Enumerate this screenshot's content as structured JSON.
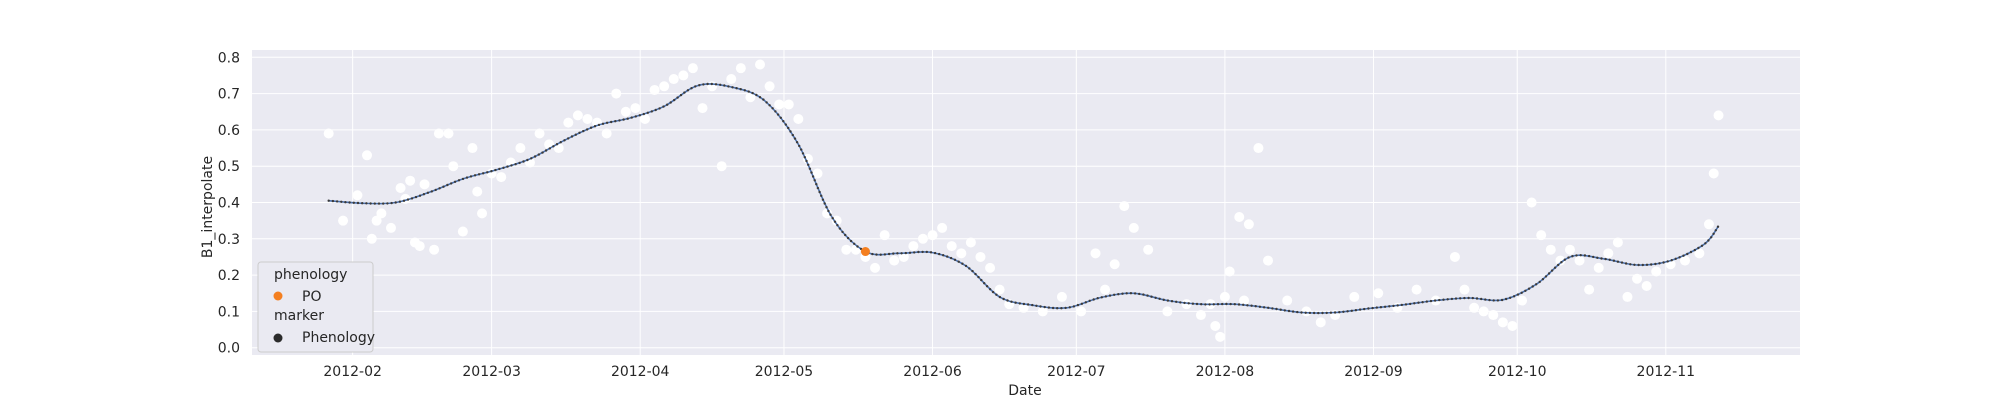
{
  "chart_data": {
    "type": "scatter",
    "title": "",
    "xlabel": "Date",
    "ylabel": "B1_interpolate",
    "x_ticks": [
      "2012-02",
      "2012-03",
      "2012-04",
      "2012-05",
      "2012-06",
      "2012-07",
      "2012-08",
      "2012-09",
      "2012-10",
      "2012-11"
    ],
    "x_tick_dates": [
      "2012-02-01",
      "2012-03-01",
      "2012-04-01",
      "2012-05-01",
      "2012-06-01",
      "2012-07-01",
      "2012-08-01",
      "2012-09-01",
      "2012-10-01",
      "2012-11-01"
    ],
    "xlim": [
      "2012-01-11",
      "2012-11-29"
    ],
    "y_ticks": [
      "0.0",
      "0.1",
      "0.2",
      "0.3",
      "0.4",
      "0.5",
      "0.6",
      "0.7",
      "0.8"
    ],
    "ylim": [
      -0.02,
      0.82
    ],
    "grid": true,
    "legend_position": "lower-left",
    "legend": {
      "title1": "phenology",
      "item1": "PO",
      "title2": "marker",
      "item2": "Phenology"
    },
    "colors": {
      "background": "#eaeaf2",
      "grid": "#ffffff",
      "raw_points": "#ffffff",
      "curve": "#4c72b0",
      "curve_marker": "#3a3a3a",
      "phenology_PO": "#f47f20",
      "legend_marker": "#2b2b2b"
    },
    "series": [
      {
        "role": "raw-observations",
        "x": [
          "2012-01-27",
          "2012-01-30",
          "2012-02-02",
          "2012-02-04",
          "2012-02-05",
          "2012-02-06",
          "2012-02-07",
          "2012-02-09",
          "2012-02-11",
          "2012-02-12",
          "2012-02-13",
          "2012-02-14",
          "2012-02-15",
          "2012-02-16",
          "2012-02-18",
          "2012-02-19",
          "2012-02-21",
          "2012-02-22",
          "2012-02-24",
          "2012-02-26",
          "2012-02-27",
          "2012-02-28",
          "2012-03-01",
          "2012-03-03",
          "2012-03-05",
          "2012-03-07",
          "2012-03-09",
          "2012-03-11",
          "2012-03-13",
          "2012-03-15",
          "2012-03-17",
          "2012-03-19",
          "2012-03-21",
          "2012-03-23",
          "2012-03-25",
          "2012-03-27",
          "2012-03-29",
          "2012-03-31",
          "2012-04-02",
          "2012-04-04",
          "2012-04-06",
          "2012-04-08",
          "2012-04-10",
          "2012-04-12",
          "2012-04-14",
          "2012-04-16",
          "2012-04-18",
          "2012-04-20",
          "2012-04-22",
          "2012-04-24",
          "2012-04-26",
          "2012-04-28",
          "2012-04-30",
          "2012-05-02",
          "2012-05-04",
          "2012-05-06",
          "2012-05-08",
          "2012-05-10",
          "2012-05-12",
          "2012-05-14",
          "2012-05-16",
          "2012-05-18",
          "2012-05-20",
          "2012-05-22",
          "2012-05-24",
          "2012-05-26",
          "2012-05-28",
          "2012-05-30",
          "2012-06-01",
          "2012-06-03",
          "2012-06-05",
          "2012-06-07",
          "2012-06-09",
          "2012-06-11",
          "2012-06-13",
          "2012-06-15",
          "2012-06-17",
          "2012-06-20",
          "2012-06-24",
          "2012-06-28",
          "2012-07-02",
          "2012-07-05",
          "2012-07-07",
          "2012-07-09",
          "2012-07-11",
          "2012-07-13",
          "2012-07-16",
          "2012-07-20",
          "2012-07-24",
          "2012-07-27",
          "2012-07-29",
          "2012-07-30",
          "2012-07-31",
          "2012-08-01",
          "2012-08-02",
          "2012-08-04",
          "2012-08-05",
          "2012-08-06",
          "2012-08-08",
          "2012-08-10",
          "2012-08-14",
          "2012-08-18",
          "2012-08-21",
          "2012-08-24",
          "2012-08-28",
          "2012-09-02",
          "2012-09-06",
          "2012-09-10",
          "2012-09-14",
          "2012-09-18",
          "2012-09-20",
          "2012-09-22",
          "2012-09-24",
          "2012-09-26",
          "2012-09-28",
          "2012-09-30",
          "2012-10-02",
          "2012-10-04",
          "2012-10-06",
          "2012-10-08",
          "2012-10-10",
          "2012-10-12",
          "2012-10-14",
          "2012-10-16",
          "2012-10-18",
          "2012-10-20",
          "2012-10-22",
          "2012-10-24",
          "2012-10-26",
          "2012-10-28",
          "2012-10-30",
          "2012-11-02",
          "2012-11-05",
          "2012-11-08",
          "2012-11-10",
          "2012-11-11",
          "2012-11-12"
        ],
        "y": [
          0.59,
          0.35,
          0.42,
          0.53,
          0.3,
          0.35,
          0.37,
          0.33,
          0.44,
          0.41,
          0.46,
          0.29,
          0.28,
          0.45,
          0.27,
          0.59,
          0.59,
          0.5,
          0.32,
          0.55,
          0.43,
          0.37,
          0.48,
          0.47,
          0.51,
          0.55,
          0.51,
          0.59,
          0.56,
          0.55,
          0.62,
          0.64,
          0.63,
          0.62,
          0.59,
          0.7,
          0.65,
          0.66,
          0.63,
          0.71,
          0.72,
          0.74,
          0.75,
          0.77,
          0.66,
          0.72,
          0.5,
          0.74,
          0.77,
          0.69,
          0.78,
          0.72,
          0.67,
          0.67,
          0.63,
          0.52,
          0.48,
          0.37,
          0.35,
          0.27,
          0.27,
          0.25,
          0.22,
          0.31,
          0.24,
          0.25,
          0.28,
          0.3,
          0.31,
          0.33,
          0.28,
          0.26,
          0.29,
          0.25,
          0.22,
          0.16,
          0.12,
          0.11,
          0.1,
          0.14,
          0.1,
          0.26,
          0.16,
          0.23,
          0.39,
          0.33,
          0.27,
          0.1,
          0.12,
          0.09,
          0.12,
          0.06,
          0.03,
          0.14,
          0.21,
          0.36,
          0.13,
          0.34,
          0.55,
          0.24,
          0.13,
          0.1,
          0.07,
          0.09,
          0.14,
          0.15,
          0.11,
          0.16,
          0.13,
          0.25,
          0.16,
          0.11,
          0.1,
          0.09,
          0.07,
          0.06,
          0.13,
          0.4,
          0.31,
          0.27,
          0.24,
          0.27,
          0.24,
          0.16,
          0.22,
          0.26,
          0.29,
          0.14,
          0.19,
          0.17,
          0.21,
          0.23,
          0.24,
          0.26,
          0.34,
          0.48,
          0.64
        ]
      },
      {
        "role": "interpolated-curve",
        "x": [
          "2012-01-27",
          "2012-02-03",
          "2012-02-10",
          "2012-02-17",
          "2012-02-24",
          "2012-03-02",
          "2012-03-09",
          "2012-03-16",
          "2012-03-23",
          "2012-03-30",
          "2012-04-06",
          "2012-04-13",
          "2012-04-20",
          "2012-04-27",
          "2012-05-04",
          "2012-05-11",
          "2012-05-18",
          "2012-05-25",
          "2012-06-01",
          "2012-06-08",
          "2012-06-15",
          "2012-06-22",
          "2012-06-29",
          "2012-07-06",
          "2012-07-13",
          "2012-07-20",
          "2012-07-27",
          "2012-08-03",
          "2012-08-10",
          "2012-08-17",
          "2012-08-24",
          "2012-08-31",
          "2012-09-07",
          "2012-09-14",
          "2012-09-21",
          "2012-09-28",
          "2012-10-05",
          "2012-10-12",
          "2012-10-19",
          "2012-10-26",
          "2012-11-02",
          "2012-11-09",
          "2012-11-12"
        ],
        "y": [
          0.405,
          0.398,
          0.4,
          0.428,
          0.465,
          0.49,
          0.52,
          0.57,
          0.612,
          0.633,
          0.665,
          0.722,
          0.718,
          0.68,
          0.56,
          0.36,
          0.265,
          0.26,
          0.262,
          0.225,
          0.14,
          0.117,
          0.11,
          0.138,
          0.15,
          0.13,
          0.12,
          0.12,
          0.11,
          0.097,
          0.097,
          0.108,
          0.118,
          0.13,
          0.137,
          0.132,
          0.175,
          0.25,
          0.245,
          0.228,
          0.24,
          0.285,
          0.335
        ]
      }
    ],
    "phenology_points": [
      {
        "name": "PO",
        "x": "2012-05-18",
        "y": 0.265
      }
    ]
  }
}
